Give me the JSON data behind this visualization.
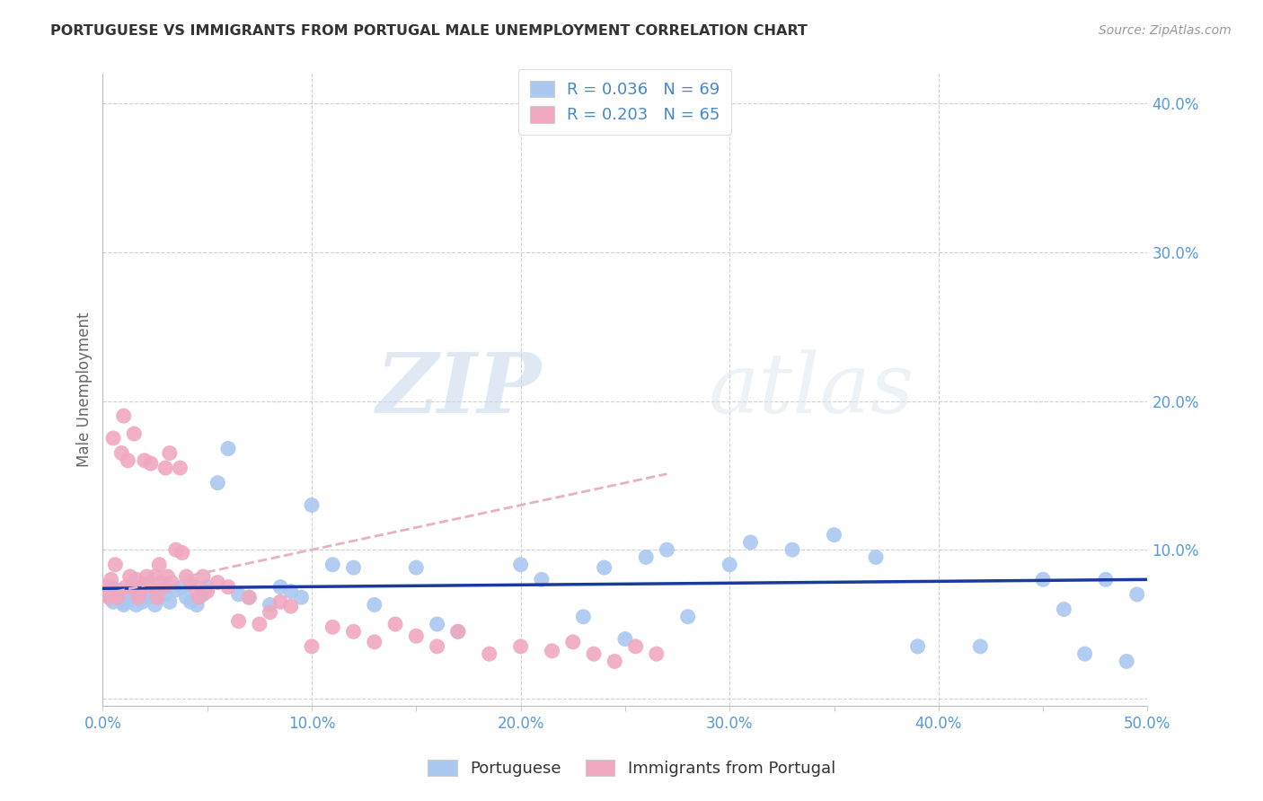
{
  "title": "PORTUGUESE VS IMMIGRANTS FROM PORTUGAL MALE UNEMPLOYMENT CORRELATION CHART",
  "source": "Source: ZipAtlas.com",
  "ylabel": "Male Unemployment",
  "watermark_zip": "ZIP",
  "watermark_atlas": "atlas",
  "xlim": [
    0.0,
    0.5
  ],
  "ylim": [
    -0.005,
    0.42
  ],
  "xticks": [
    0.0,
    0.1,
    0.2,
    0.3,
    0.4,
    0.5
  ],
  "yticks": [
    0.0,
    0.1,
    0.2,
    0.3,
    0.4
  ],
  "ytick_labels": [
    "",
    "10.0%",
    "20.0%",
    "30.0%",
    "40.0%"
  ],
  "xtick_labels": [
    "0.0%",
    "",
    "10.0%",
    "",
    "20.0%",
    "",
    "30.0%",
    "",
    "40.0%",
    "",
    "50.0%"
  ],
  "xtick_positions": [
    0.0,
    0.05,
    0.1,
    0.15,
    0.2,
    0.25,
    0.3,
    0.35,
    0.4,
    0.45,
    0.5
  ],
  "blue_color": "#aac8f0",
  "pink_color": "#f0a8c0",
  "blue_line_color": "#1a3a9c",
  "pink_line_color": "#e8b0c0",
  "legend_label1": "Portuguese",
  "legend_label2": "Immigrants from Portugal",
  "blue_scatter_x": [
    0.002,
    0.003,
    0.004,
    0.005,
    0.006,
    0.007,
    0.008,
    0.009,
    0.01,
    0.011,
    0.012,
    0.013,
    0.014,
    0.015,
    0.016,
    0.017,
    0.018,
    0.019,
    0.02,
    0.022,
    0.024,
    0.025,
    0.026,
    0.028,
    0.03,
    0.032,
    0.035,
    0.038,
    0.04,
    0.042,
    0.045,
    0.048,
    0.05,
    0.055,
    0.06,
    0.065,
    0.07,
    0.08,
    0.085,
    0.09,
    0.095,
    0.1,
    0.11,
    0.12,
    0.13,
    0.15,
    0.16,
    0.17,
    0.2,
    0.21,
    0.23,
    0.24,
    0.25,
    0.26,
    0.27,
    0.28,
    0.3,
    0.31,
    0.33,
    0.35,
    0.37,
    0.39,
    0.42,
    0.45,
    0.46,
    0.47,
    0.48,
    0.49,
    0.495
  ],
  "blue_scatter_y": [
    0.072,
    0.068,
    0.075,
    0.065,
    0.07,
    0.073,
    0.068,
    0.065,
    0.063,
    0.07,
    0.065,
    0.072,
    0.068,
    0.075,
    0.063,
    0.07,
    0.068,
    0.065,
    0.072,
    0.068,
    0.075,
    0.063,
    0.068,
    0.072,
    0.07,
    0.065,
    0.073,
    0.075,
    0.068,
    0.065,
    0.063,
    0.07,
    0.075,
    0.145,
    0.168,
    0.07,
    0.068,
    0.063,
    0.075,
    0.072,
    0.068,
    0.13,
    0.09,
    0.088,
    0.063,
    0.088,
    0.05,
    0.045,
    0.09,
    0.08,
    0.055,
    0.088,
    0.04,
    0.095,
    0.1,
    0.055,
    0.09,
    0.105,
    0.1,
    0.11,
    0.095,
    0.035,
    0.035,
    0.08,
    0.06,
    0.03,
    0.08,
    0.025,
    0.07
  ],
  "pink_scatter_x": [
    0.002,
    0.003,
    0.004,
    0.005,
    0.006,
    0.007,
    0.008,
    0.009,
    0.01,
    0.011,
    0.012,
    0.013,
    0.014,
    0.015,
    0.016,
    0.017,
    0.018,
    0.019,
    0.02,
    0.021,
    0.022,
    0.023,
    0.024,
    0.025,
    0.026,
    0.027,
    0.028,
    0.029,
    0.03,
    0.031,
    0.032,
    0.033,
    0.035,
    0.037,
    0.038,
    0.04,
    0.042,
    0.044,
    0.046,
    0.048,
    0.05,
    0.055,
    0.06,
    0.065,
    0.07,
    0.075,
    0.08,
    0.085,
    0.09,
    0.1,
    0.11,
    0.12,
    0.13,
    0.14,
    0.15,
    0.16,
    0.17,
    0.185,
    0.2,
    0.215,
    0.225,
    0.235,
    0.245,
    0.255,
    0.265
  ],
  "pink_scatter_y": [
    0.075,
    0.068,
    0.08,
    0.175,
    0.09,
    0.068,
    0.072,
    0.165,
    0.19,
    0.075,
    0.16,
    0.082,
    0.075,
    0.178,
    0.08,
    0.068,
    0.072,
    0.075,
    0.16,
    0.082,
    0.078,
    0.158,
    0.075,
    0.082,
    0.068,
    0.09,
    0.078,
    0.075,
    0.155,
    0.082,
    0.165,
    0.078,
    0.1,
    0.155,
    0.098,
    0.082,
    0.078,
    0.075,
    0.068,
    0.082,
    0.072,
    0.078,
    0.075,
    0.052,
    0.068,
    0.05,
    0.058,
    0.065,
    0.062,
    0.035,
    0.048,
    0.045,
    0.038,
    0.05,
    0.042,
    0.035,
    0.045,
    0.03,
    0.035,
    0.032,
    0.038,
    0.03,
    0.025,
    0.035,
    0.03
  ]
}
